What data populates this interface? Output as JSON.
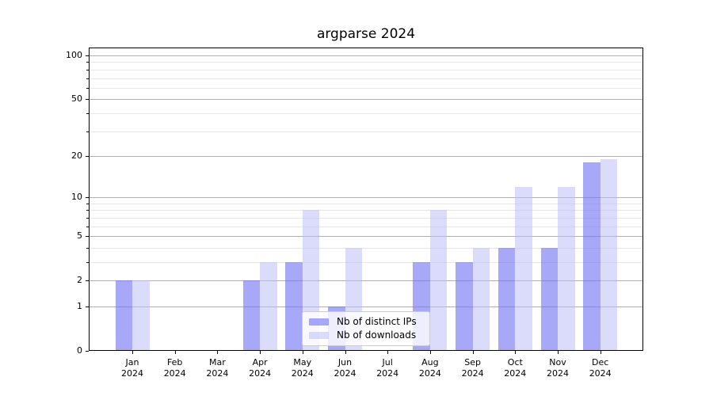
{
  "chart_data": {
    "type": "bar",
    "title": "argparse 2024",
    "categories": [
      "Jan",
      "Feb",
      "Mar",
      "Apr",
      "May",
      "Jun",
      "Jul",
      "Aug",
      "Sep",
      "Oct",
      "Nov",
      "Dec"
    ],
    "category_year": "2024",
    "series": [
      {
        "name": "Nb of distinct IPs",
        "color": "rgba(115,115,245,0.62)",
        "values": [
          2,
          0,
          0,
          2,
          3,
          1,
          0,
          3,
          3,
          4,
          4,
          18
        ]
      },
      {
        "name": "Nb of downloads",
        "color": "rgba(186,186,248,0.52)",
        "values": [
          2,
          0,
          0,
          3,
          8,
          4,
          0,
          8,
          4,
          12,
          12,
          19
        ]
      }
    ],
    "yscale": "symlog (log1p)",
    "yticks": [
      0,
      1,
      2,
      5,
      10,
      20,
      50,
      100
    ],
    "yticks_minor": [
      3,
      4,
      6,
      7,
      8,
      9,
      30,
      40,
      60,
      70,
      80,
      90
    ],
    "ylim": [
      0,
      113
    ],
    "xlabel": "",
    "ylabel": "",
    "grid": "horizontal major+minor",
    "legend_position": "lower center inside plot"
  },
  "colors": {
    "figure_bg": "#ffffff",
    "bar_distinct_ips": "rgba(115,115,245,0.62)",
    "bar_downloads": "rgba(186,186,248,0.52)",
    "grid_major": "#b0b0b0",
    "grid_minor": "#e6e6e6",
    "spine": "#000000",
    "legend_border": "#cccccc",
    "legend_bg": "rgba(255,255,255,0.8)"
  }
}
